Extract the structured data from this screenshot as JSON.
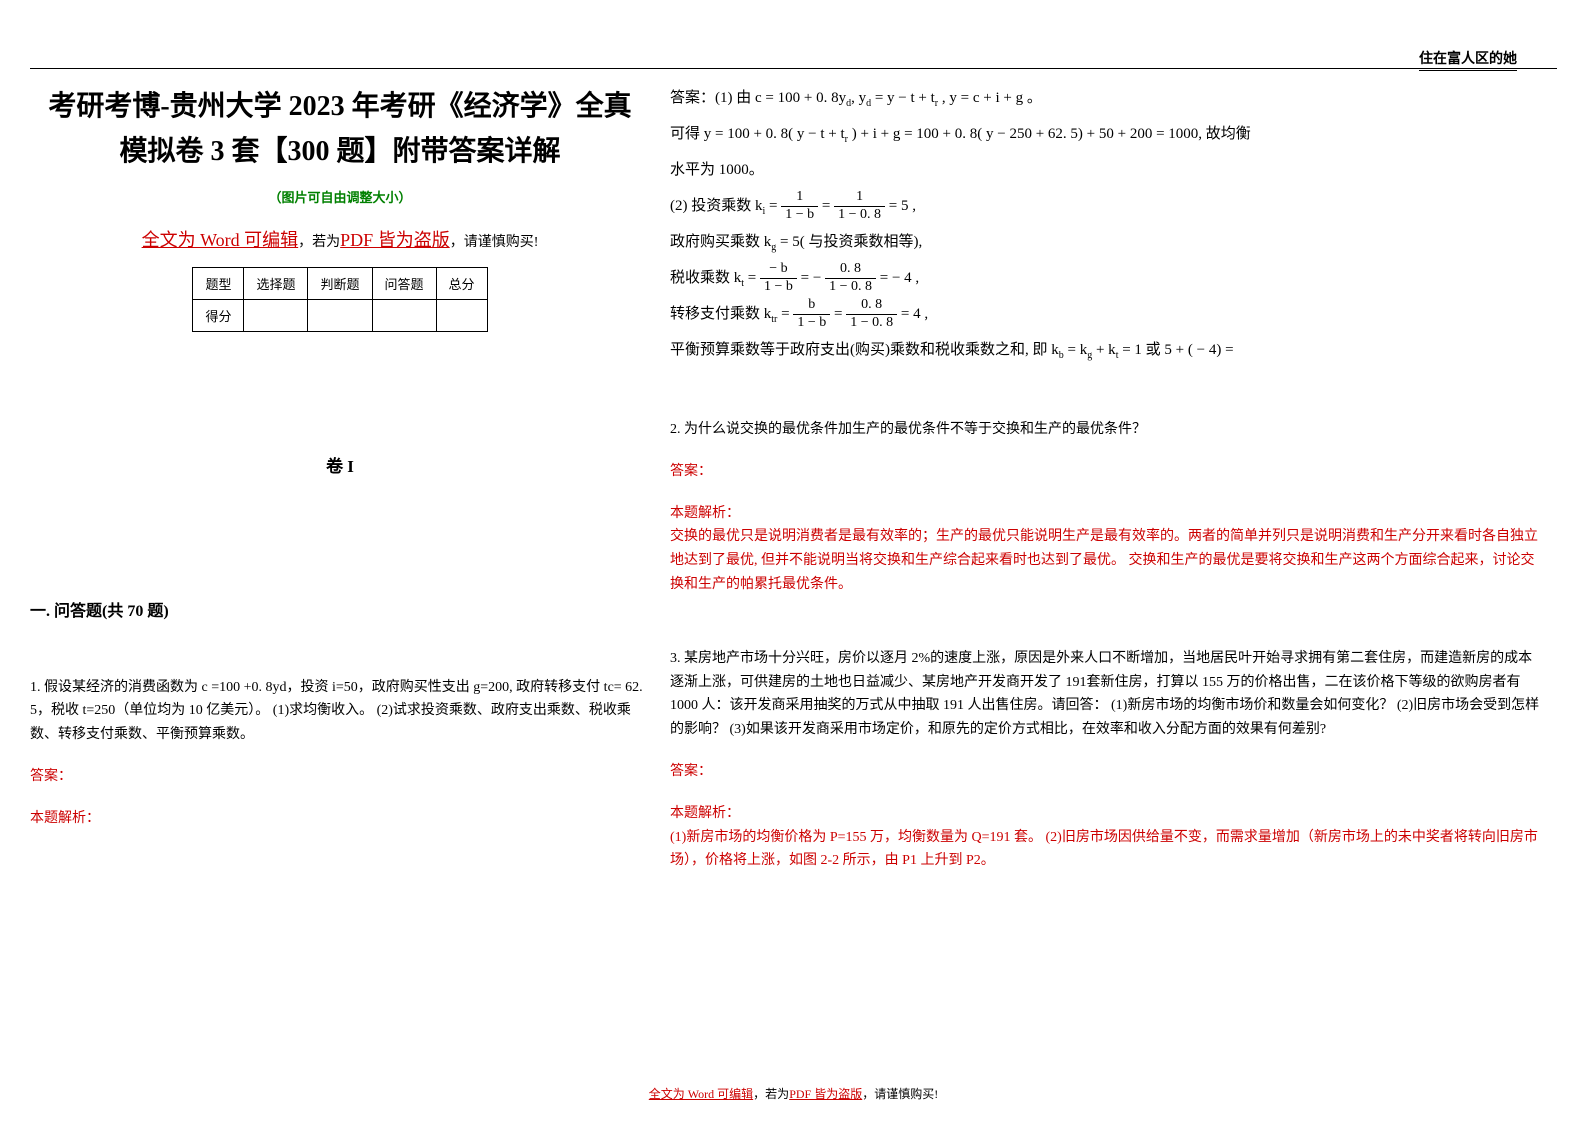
{
  "header": {
    "corner_text": "住在富人区的她"
  },
  "title": {
    "line1": "考研考博-贵州大学 2023 年考研《经济学》全真",
    "line2": "模拟卷 3 套【300 题】附带答案详解",
    "green_note": "（图片可自由调整大小）",
    "warning_prefix": "全文为 Word 可编辑",
    "warning_middle": "，若为",
    "warning_pdf": "PDF 皆为盗版",
    "warning_suffix": "，请谨慎购买!"
  },
  "score_table": {
    "headers": [
      "题型",
      "选择题",
      "判断题",
      "问答题",
      "总分"
    ],
    "row_label": "得分"
  },
  "juan": "卷 I",
  "section": "一. 问答题(共 70 题)",
  "q1": {
    "text": "1. 假设某经济的消费函数为 c =100 +0. 8yd，投资 i=50，政府购买性支出 g=200, 政府转移支付 tc= 62. 5，税收 t=250（单位均为 10 亿美元）。 (1)求均衡收入。 (2)试求投资乘数、政府支出乘数、税收乘数、转移支付乘数、平衡预算乘数。",
    "answer_label": "答案：",
    "analysis_label": "本题解析："
  },
  "right": {
    "ans_prefix": "答案：(1) 由 c = 100 + 0. 8y",
    "ans_line1_mid": ", y",
    "ans_line1_eq": " = y − t + t",
    "ans_line1_end": " , y = c + i + g 。",
    "line2": "可得 y = 100 + 0. 8( y − t + t",
    "line2_end": " ) + i + g = 100 + 0. 8( y − 250 + 62. 5) + 50 + 200 = 1000, 故均衡",
    "line3": "水平为 1000。",
    "line4_prefix": "(2) 投资乘数 k",
    "line4_eq": " = ",
    "line4_val": " = 5 ,",
    "line5": "政府购买乘数 k",
    "line5_end": " = 5( 与投资乘数相等),",
    "line6": "税收乘数 k",
    "line6_end": " = − 4 ,",
    "line7": "转移支付乘数 k",
    "line7_end": " = 4 ,",
    "line8": "平衡预算乘数等于政府支出(购买)乘数和税收乘数之和, 即 k",
    "line8_mid": " = k",
    "line8_mid2": " + k",
    "line8_end": " = 1 或 5 + ( − 4) = ",
    "frac1_num": "1",
    "frac1_den": "1 − b",
    "frac2_num": "1",
    "frac2_den": "1 − 0. 8",
    "frac3_num": "− b",
    "frac3_den": "1 − b",
    "frac4_num": "0. 8",
    "frac4_den": "1 − 0. 8",
    "frac5_num": "b",
    "frac5_den": "1 − b",
    "frac6_num": "0. 8",
    "frac6_den": "1 − 0. 8"
  },
  "q2": {
    "text": "2. 为什么说交换的最优条件加生产的最优条件不等于交换和生产的最优条件？",
    "answer_label": "答案：",
    "analysis_label": "本题解析：",
    "analysis_text": "交换的最优只是说明消费者是最有效率的；生产的最优只能说明生产是最有效率的。两者的简单并列只是说明消费和生产分开来看时各自独立地达到了最优, 但并不能说明当将交换和生产综合起来看时也达到了最优。 交换和生产的最优是要将交换和生产这两个方面综合起来，讨论交换和生产的帕累托最优条件。"
  },
  "q3": {
    "text": "3. 某房地产市场十分兴旺，房价以逐月 2%的速度上涨，原因是外来人口不断增加，当地居民叶开始寻求拥有第二套住房，而建造新房的成本逐渐上涨，可供建房的土地也日益减少、某房地产开发商开发了 191套新住房，打算以 155 万的价格出售，二在该价格下等级的欲购房者有 1000 人：该开发商采用抽奖的万式从中抽取 191 人出售住房。请回答： (1)新房市场的均衡市场价和数量会如何变化？ (2)旧房市场会受到怎样的影响？ (3)如果该开发商采用市场定价，和原先的定价方式相比，在效率和收入分配方面的效果有何差别?",
    "answer_label": "答案：",
    "analysis_label": "本题解析：",
    "analysis_text": "(1)新房市场的均衡价格为 P=155 万，均衡数量为 Q=191 套。 (2)旧房市场因供给量不变，而需求量增加（新房市场上的未中奖者将转向旧房市场），价格将上涨，如图 2-2 所示，由 P1 上升到 P2。"
  },
  "footer": {
    "prefix": "全文为 Word 可编辑",
    "middle": "，若为",
    "pdf": "PDF 皆为盗版",
    "suffix": "，请谨慎购买!"
  }
}
